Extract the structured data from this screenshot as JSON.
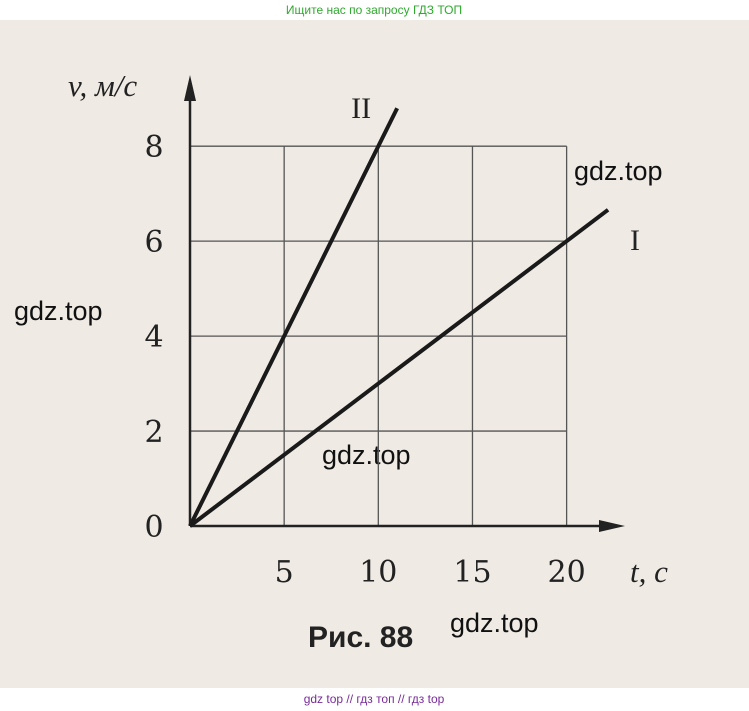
{
  "header": "Ищите нас по запросу ГДЗ ТОП",
  "footer": "gdz top  //  гдз топ  //  гдз top",
  "watermarks": [
    "gdz.top",
    "gdz.top",
    "gdz.top",
    "gdz.top"
  ],
  "chart_data": {
    "type": "line",
    "caption": "Рис. 88",
    "x_label": "t, с",
    "y_label": "v, м/с",
    "series": [
      {
        "name": "I",
        "color": "#1a1a1a",
        "x": [
          0,
          22.2
        ],
        "values": [
          0,
          6.66
        ]
      },
      {
        "name": "II",
        "color": "#1a1a1a",
        "x": [
          0,
          11
        ],
        "values": [
          0,
          8.8
        ]
      }
    ],
    "xlim": [
      0,
      23.1
    ],
    "ylim": [
      0,
      9.5
    ],
    "xticks": [
      5,
      10,
      15,
      20
    ],
    "yticks": [
      0,
      2,
      4,
      6,
      8
    ],
    "grid": true
  }
}
